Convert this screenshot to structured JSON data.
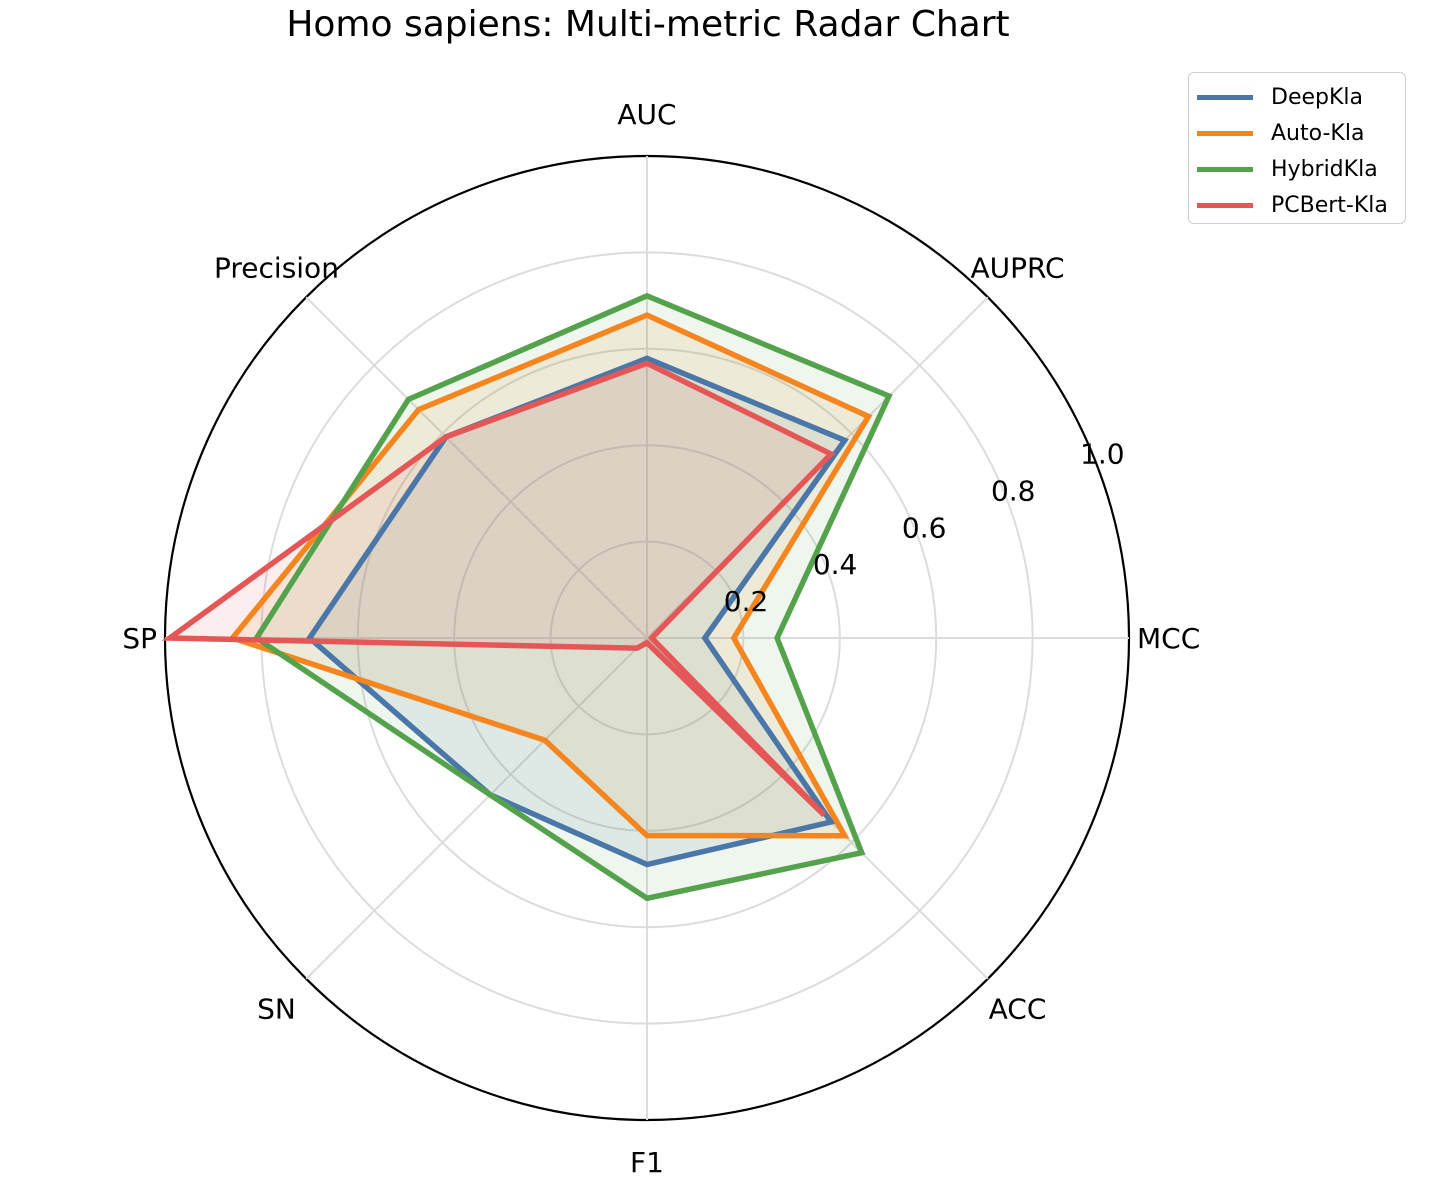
{
  "chart_data": {
    "type": "radar",
    "title": "Homo sapiens: Multi-metric Radar Chart",
    "categories": [
      "MCC",
      "AUPRC",
      "AUC",
      "Precision",
      "SP",
      "SN",
      "F1",
      "ACC"
    ],
    "rlim": [
      0,
      1.0
    ],
    "rticks": [
      "0.2",
      "0.4",
      "0.6",
      "0.8",
      "1.0"
    ],
    "rtick_values": [
      0.2,
      0.4,
      0.6,
      0.8,
      1.0
    ],
    "grid": true,
    "legend_position": "top-right",
    "series": [
      {
        "name": "DeepKla",
        "color": "#4a76a8",
        "values": [
          0.12,
          0.58,
          0.58,
          0.59,
          0.7,
          0.46,
          0.47,
          0.54
        ]
      },
      {
        "name": "Auto-Kla",
        "color": "#f5851f",
        "values": [
          0.18,
          0.65,
          0.67,
          0.67,
          0.86,
          0.3,
          0.41,
          0.58
        ]
      },
      {
        "name": "HybridKla",
        "color": "#54a24b",
        "values": [
          0.27,
          0.71,
          0.71,
          0.7,
          0.81,
          0.46,
          0.54,
          0.63
        ]
      },
      {
        "name": "PCBert-Kla",
        "color": "#e45756",
        "values": [
          0.01,
          0.54,
          0.57,
          0.59,
          0.99,
          0.03,
          0.01,
          0.52
        ]
      }
    ]
  }
}
